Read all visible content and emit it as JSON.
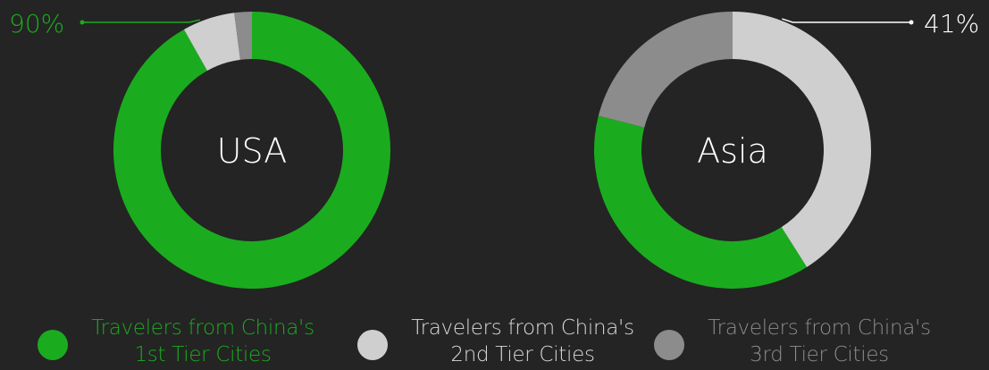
{
  "colors": {
    "background": "#242424",
    "tier1": "#1aac1e",
    "tier2": "#cfcfcf",
    "tier3": "#8c8c8c"
  },
  "chart_data": [
    {
      "type": "pie",
      "variant": "donut",
      "title": "USA",
      "categories": [
        "Travelers from China's 1st Tier Cities",
        "Travelers from China's 2nd Tier Cities",
        "Travelers from China's 3rd Tier Cities"
      ],
      "values": [
        90,
        6,
        2
      ],
      "annotation": {
        "text": "90%",
        "series": "Travelers from China's 1st Tier Cities",
        "color": "#1aac1e",
        "side": "left"
      }
    },
    {
      "type": "pie",
      "variant": "donut",
      "title": "Asia",
      "categories": [
        "Travelers from China's 1st Tier Cities",
        "Travelers from China's 2nd Tier Cities",
        "Travelers from China's 3rd Tier Cities"
      ],
      "values": [
        38,
        41,
        21
      ],
      "annotation": {
        "text": "41%",
        "series": "Travelers from China's 2nd Tier Cities",
        "color": "#ffffff",
        "side": "right"
      }
    }
  ],
  "legend": {
    "placement": "bottom",
    "items": [
      {
        "line1": "Travelers from China's",
        "line2": "1st Tier Cities",
        "color": "#1aac1e",
        "text_color": "#1aac1e"
      },
      {
        "line1": "Travelers from China's",
        "line2": "2nd Tier Cities",
        "color": "#cfcfcf",
        "text_color": "#d9d9d9"
      },
      {
        "line1": "Travelers from China's",
        "line2": "3rd Tier Cities",
        "color": "#8c8c8c",
        "text_color": "#8c8c8c"
      }
    ]
  }
}
